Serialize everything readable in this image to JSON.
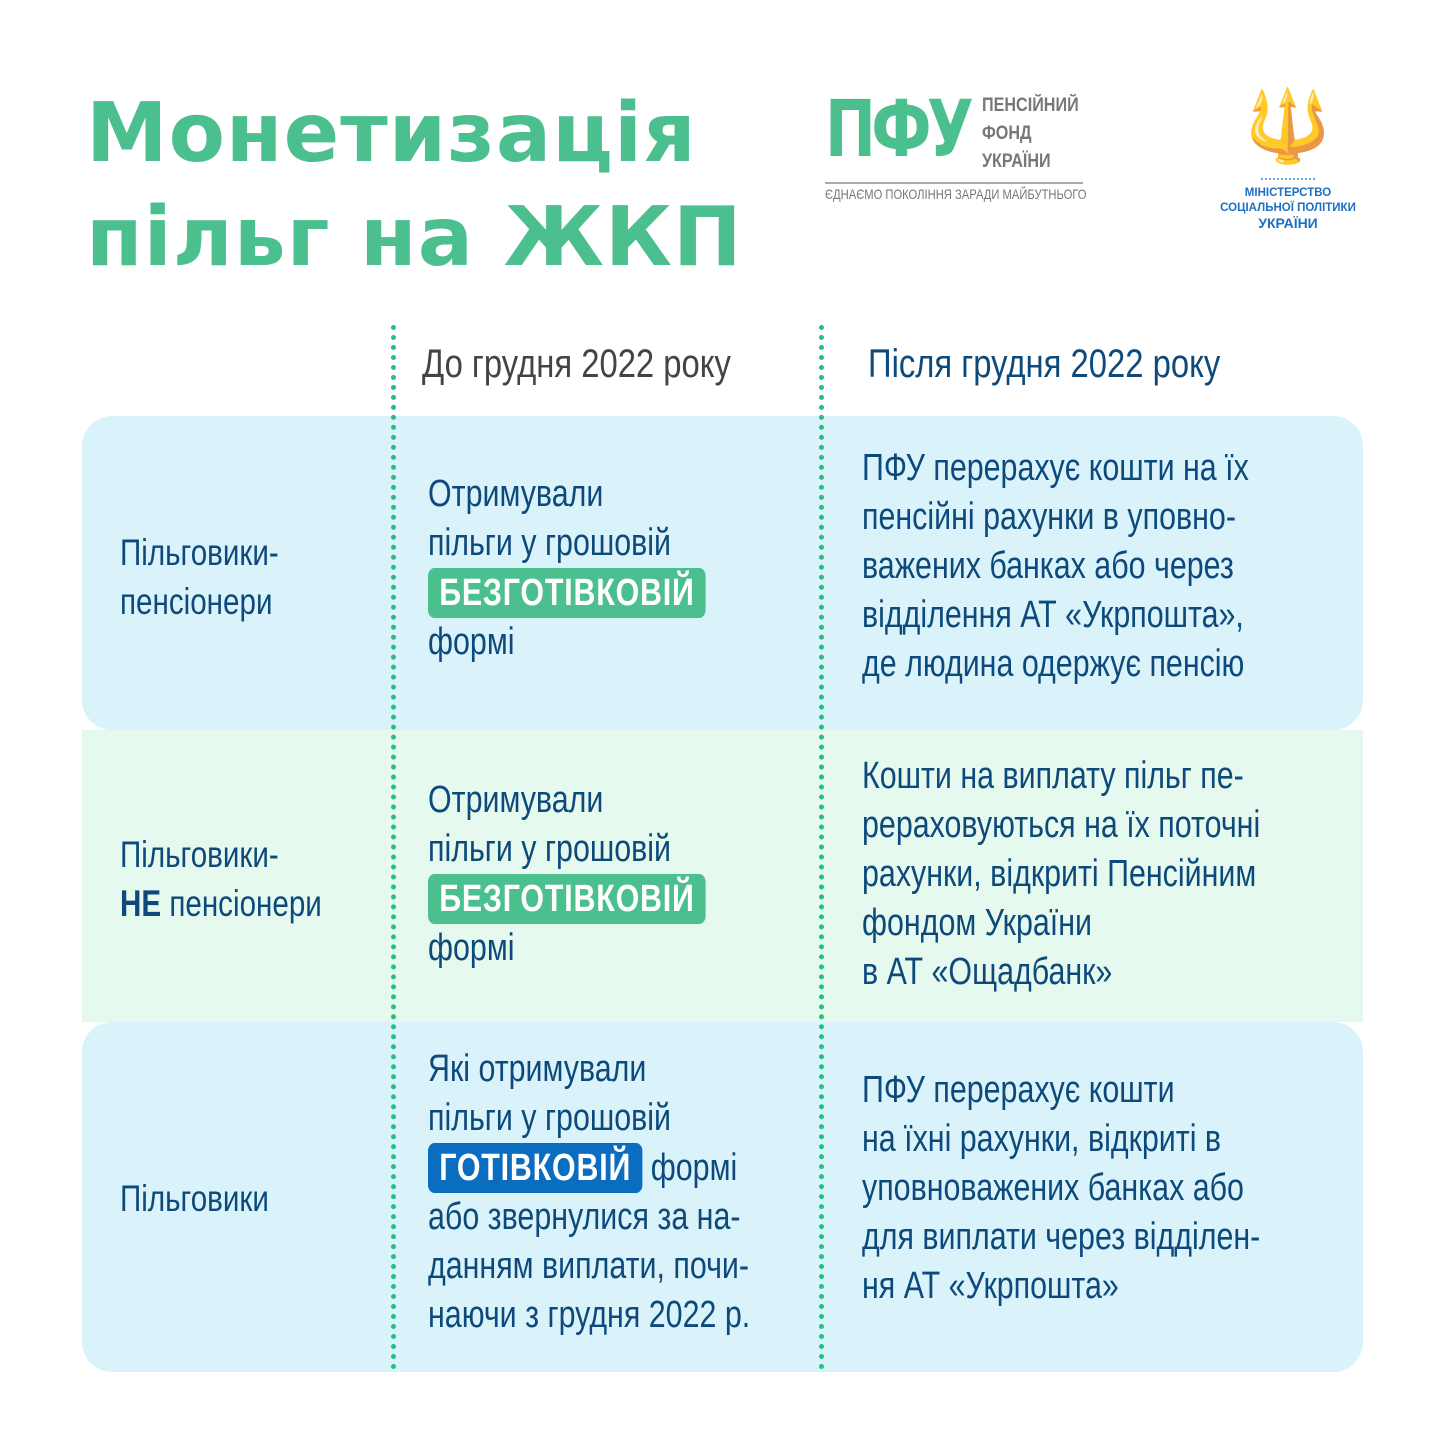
{
  "title": {
    "line1": "Монетизація",
    "line2": "пільг на ЖКП"
  },
  "logos": {
    "pfu_mark": "ПФУ",
    "pfu_name": [
      "ПЕНСІЙНИЙ",
      "ФОНД",
      "УКРАЇНИ"
    ],
    "pfu_slogan": "ЄДНАЄМО ПОКОЛІННЯ ЗАРАДИ МАЙБУТНЬОГО",
    "ministry": [
      "МІНІСТЕРСТВО",
      "СОЦІАЛЬНОЇ ПОЛІТИКИ",
      "УКРАЇНИ"
    ],
    "ministry_icon": "trident-icon"
  },
  "colors": {
    "green": "#4cbf8f",
    "blue": "#0b6dbf",
    "text": "#0d4a7b",
    "row_blue": "#daf3fb",
    "row_green": "#e5f9ee"
  },
  "headers": {
    "before": "До грудня 2022 року",
    "after": "Після грудня 2022 року"
  },
  "rows": [
    {
      "label": [
        "Пільговики-",
        "пенсіонери"
      ],
      "before": {
        "lines": [
          "Отримували",
          "пільги у грошовій"
        ],
        "pill": "БЕЗГОТІВКОВІЙ",
        "after_pill": "формі"
      },
      "after": [
        "ПФУ перерахує кошти на їх",
        "пенсійні рахунки в уповно-",
        "важених банках або через",
        "відділення АТ «Укрпошта»,",
        "де людина одержує пенсію"
      ]
    },
    {
      "label": [
        "Пільговики-",
        "НЕ",
        "пенсіонери"
      ],
      "before": {
        "lines": [
          "Отримували",
          "пільги у грошовій"
        ],
        "pill": "БЕЗГОТІВКОВІЙ",
        "after_pill": "формі"
      },
      "after": [
        "Кошти на виплату пільг пе-",
        "рераховуються на їх поточні",
        "рахунки, відкриті Пенсійним",
        "фондом України",
        "в АТ «Ощадбанк»"
      ]
    },
    {
      "label": [
        "Пільговики"
      ],
      "before": {
        "lines": [
          "Які отримували",
          "пільги у грошовій"
        ],
        "pill": "ГОТІВКОВІЙ",
        "pill_suffix": "формі",
        "rest": [
          "або звернулися за на-",
          "данням виплати, почи-",
          "наючи з грудня 2022 р."
        ]
      },
      "after": [
        "ПФУ перерахує кошти",
        "на їхні рахунки, відкриті в",
        "уповноважених банках або",
        "для виплати через відділен-",
        "ня АТ «Укрпошта»"
      ]
    }
  ]
}
